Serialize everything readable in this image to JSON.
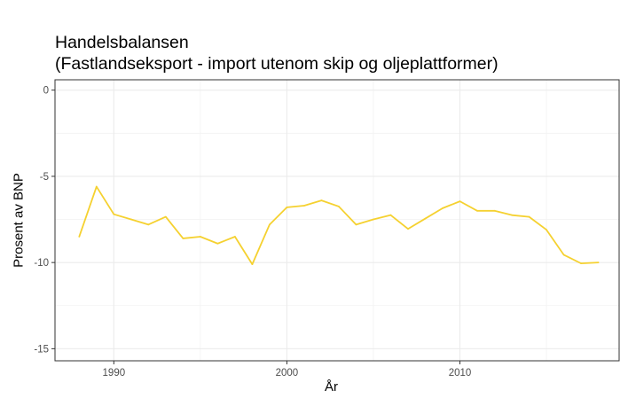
{
  "chart_data": {
    "type": "line",
    "title": "Handelsbalansen",
    "subtitle": "(Fastlandseksport - import utenom skip og oljeplattformer)",
    "xlabel": "År",
    "ylabel": "Prosent av BNP",
    "xlim": [
      1986.6,
      2019.2
    ],
    "ylim": [
      -15.7,
      0.6
    ],
    "xticks": [
      1990,
      2000,
      2010
    ],
    "yticks": [
      0,
      -5,
      -10,
      -15
    ],
    "grid": true,
    "color": "#F5D130",
    "x": [
      1988,
      1989,
      1990,
      1991,
      1992,
      1993,
      1994,
      1995,
      1996,
      1997,
      1998,
      1999,
      2000,
      2001,
      2002,
      2003,
      2004,
      2005,
      2006,
      2007,
      2008,
      2009,
      2010,
      2011,
      2012,
      2013,
      2014,
      2015,
      2016,
      2017,
      2018
    ],
    "values": [
      -8.5,
      -5.6,
      -7.2,
      -7.5,
      -7.8,
      -7.35,
      -8.6,
      -8.5,
      -8.9,
      -8.5,
      -10.1,
      -7.8,
      -6.8,
      -6.7,
      -6.4,
      -6.75,
      -7.8,
      -7.5,
      -7.25,
      -8.05,
      -7.45,
      -6.85,
      -6.45,
      -7.0,
      -7.0,
      -7.25,
      -7.35,
      -8.1,
      -9.55,
      -10.05,
      -10.0
    ]
  }
}
